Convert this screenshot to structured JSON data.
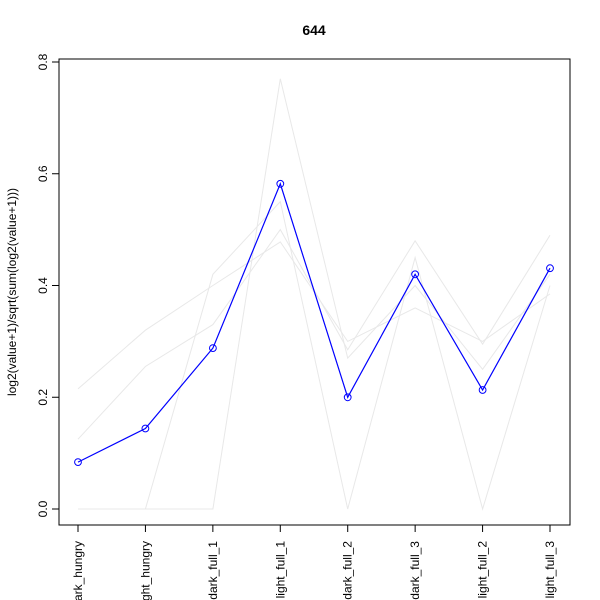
{
  "chart_data": {
    "type": "line",
    "title": "644",
    "xlabel": "",
    "ylabel": "log2(value+1)/sqrt(sum(log2(value+1)))",
    "ylim": [
      0,
      0.8
    ],
    "yticks": [
      "0.0",
      "0.2",
      "0.4",
      "0.6",
      "0.8"
    ],
    "grid": false,
    "categories": [
      "dark_hungry",
      "light_hungry",
      "dark_full_1",
      "light_full_1",
      "dark_full_2",
      "dark_full_3",
      "light_full_2",
      "light_full_3"
    ],
    "tick_labels": [
      "ark_hungry",
      "ght_hungry",
      "dark_full_1",
      "light_full_1",
      "dark_full_2",
      "dark_full_3",
      "light_full_2",
      "light_full_3"
    ],
    "series": [
      {
        "values": [
          0.084,
          0.144,
          0.288,
          0.582,
          0.2,
          0.42,
          0.213,
          0.431
        ],
        "color": "#0000ff",
        "highlight": true
      },
      {
        "values": [
          0.215,
          0.32,
          0.4,
          0.478,
          0.3,
          0.36,
          0.3,
          0.385
        ],
        "color": "#e8e8e8"
      },
      {
        "values": [
          0.125,
          0.255,
          0.33,
          0.5,
          0.285,
          0.48,
          0.295,
          0.49
        ],
        "color": "#e8e8e8"
      },
      {
        "values": [
          0.0,
          0.0,
          0.0,
          0.77,
          0.27,
          0.4,
          0.25,
          0.42
        ],
        "color": "#e8e8e8"
      },
      {
        "values": [
          0.0,
          0.0,
          0.42,
          0.55,
          0.0,
          0.45,
          0.0,
          0.4
        ],
        "color": "#e8e8e8"
      }
    ]
  }
}
